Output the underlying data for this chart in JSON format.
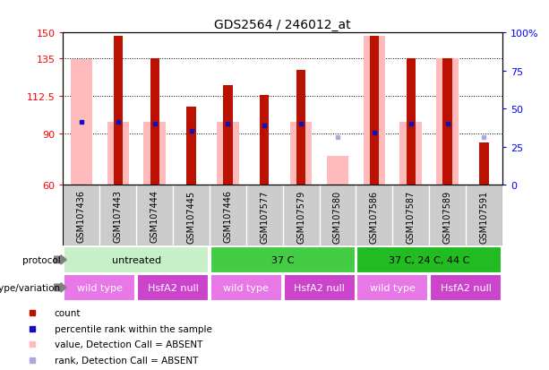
{
  "title": "GDS2564 / 246012_at",
  "samples": [
    "GSM107436",
    "GSM107443",
    "GSM107444",
    "GSM107445",
    "GSM107446",
    "GSM107577",
    "GSM107579",
    "GSM107580",
    "GSM107586",
    "GSM107587",
    "GSM107589",
    "GSM107591"
  ],
  "count_values": [
    null,
    148,
    135,
    106,
    119,
    113,
    128,
    null,
    148,
    135,
    135,
    85
  ],
  "count_absent": [
    true,
    false,
    false,
    false,
    false,
    false,
    false,
    true,
    false,
    false,
    false,
    false
  ],
  "pink_bar_tops": [
    134,
    97,
    97,
    null,
    97,
    null,
    97,
    77,
    148,
    97,
    135,
    null
  ],
  "blue_dot_values": [
    97,
    97,
    96,
    92,
    96,
    95,
    96,
    88,
    91,
    96,
    96,
    88
  ],
  "blue_dot_absent": [
    false,
    false,
    false,
    false,
    false,
    false,
    false,
    true,
    false,
    false,
    false,
    true
  ],
  "ylim_left": [
    60,
    150
  ],
  "yticks_left": [
    60,
    90,
    112.5,
    135,
    150
  ],
  "yticks_right": [
    0,
    25,
    50,
    75,
    100
  ],
  "grid_lines": [
    90,
    112.5,
    135
  ],
  "protocol_groups": [
    {
      "label": "untreated",
      "start": 0,
      "end": 3,
      "color": "#c8f0c8"
    },
    {
      "label": "37 C",
      "start": 4,
      "end": 7,
      "color": "#44cc44"
    },
    {
      "label": "37 C, 24 C, 44 C",
      "start": 8,
      "end": 11,
      "color": "#22bb22"
    }
  ],
  "genotype_groups": [
    {
      "label": "wild type",
      "start": 0,
      "end": 1,
      "color": "#e878e8"
    },
    {
      "label": "HsfA2 null",
      "start": 2,
      "end": 3,
      "color": "#cc44cc"
    },
    {
      "label": "wild type",
      "start": 4,
      "end": 5,
      "color": "#e878e8"
    },
    {
      "label": "HsfA2 null",
      "start": 6,
      "end": 7,
      "color": "#cc44cc"
    },
    {
      "label": "wild type",
      "start": 8,
      "end": 9,
      "color": "#e878e8"
    },
    {
      "label": "HsfA2 null",
      "start": 10,
      "end": 11,
      "color": "#cc44cc"
    }
  ],
  "color_red": "#bb1100",
  "color_pink": "#ffbbbb",
  "color_blue": "#1111bb",
  "color_blue_light": "#aaaadd",
  "color_gray": "#cccccc",
  "color_white": "#ffffff"
}
